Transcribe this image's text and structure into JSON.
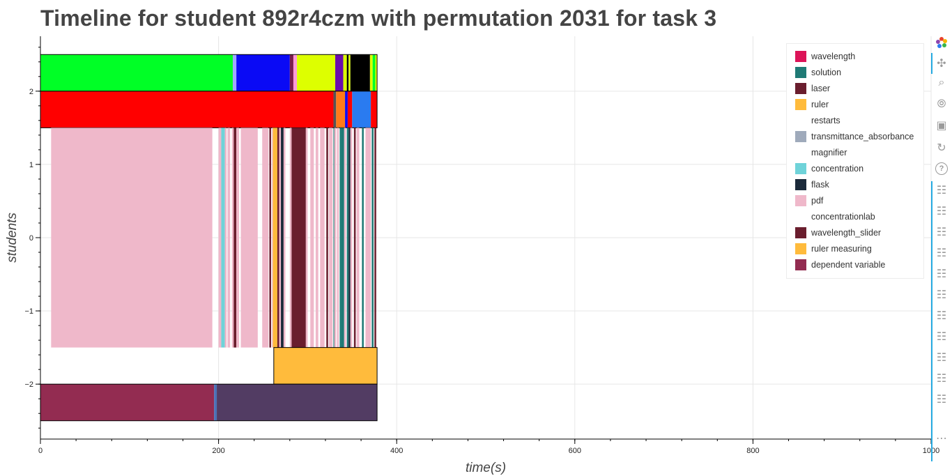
{
  "chart_data": {
    "type": "timeline",
    "title": "Timeline for student 892r4czm with permutation 2031 for task 3",
    "xlabel": "time(s)",
    "ylabel": "students",
    "xlim": [
      0,
      1000
    ],
    "ylim": [
      -2.75,
      2.75
    ],
    "x_ticks": [
      0,
      200,
      400,
      600,
      800,
      1000
    ],
    "x_tick_labels": [
      "0",
      "200",
      "400",
      "600",
      "800",
      "1000"
    ],
    "y_ticks": [
      2,
      1,
      0,
      -1,
      -2
    ],
    "y_tick_labels": [
      "2",
      "1",
      "0",
      "−1",
      "−2"
    ],
    "grid": true,
    "legend_position": "top-right",
    "bands": [
      {
        "y0": 2.0,
        "y1": 2.5,
        "outline": true,
        "segments": [
          {
            "x0": 0,
            "x1": 216,
            "color": "#00ff26"
          },
          {
            "x0": 216,
            "x1": 220,
            "color": "#a0a8ff"
          },
          {
            "x0": 220,
            "x1": 280,
            "color": "#0a0af5"
          },
          {
            "x0": 280,
            "x1": 284,
            "color": "#7a1d4d"
          },
          {
            "x0": 284,
            "x1": 288,
            "color": "#ff9ad8"
          },
          {
            "x0": 288,
            "x1": 331,
            "color": "#ddff00"
          },
          {
            "x0": 331,
            "x1": 340,
            "color": "#6a0dad"
          },
          {
            "x0": 340,
            "x1": 344,
            "color": "#ddff00"
          },
          {
            "x0": 344,
            "x1": 346,
            "color": "#000000"
          },
          {
            "x0": 346,
            "x1": 348,
            "color": "#ddff00"
          },
          {
            "x0": 348,
            "x1": 370,
            "color": "#000000"
          },
          {
            "x0": 370,
            "x1": 373,
            "color": "#ddff00"
          },
          {
            "x0": 373,
            "x1": 376,
            "color": "#00ff26"
          },
          {
            "x0": 376,
            "x1": 378,
            "color": "#ddff00"
          }
        ]
      },
      {
        "y0": 1.5,
        "y1": 2.0,
        "outline": true,
        "segments": [
          {
            "x0": 0,
            "x1": 329,
            "color": "#ff0000"
          },
          {
            "x0": 329,
            "x1": 332,
            "color": "#555555"
          },
          {
            "x0": 332,
            "x1": 342,
            "color": "#ff7a1a"
          },
          {
            "x0": 342,
            "x1": 345,
            "color": "#0a0af5"
          },
          {
            "x0": 345,
            "x1": 350,
            "color": "#ff0000"
          },
          {
            "x0": 350,
            "x1": 371,
            "color": "#2a7bf0"
          },
          {
            "x0": 371,
            "x1": 378,
            "color": "#ff0000"
          }
        ]
      },
      {
        "y0": -1.5,
        "y1": 1.5,
        "outline": false,
        "segments": [
          {
            "x0": 12,
            "x1": 193,
            "color": "#efb8ca"
          },
          {
            "x0": 200,
            "x1": 203,
            "color": "#efb8ca"
          },
          {
            "x0": 203,
            "x1": 207,
            "color": "#6fd3d9"
          },
          {
            "x0": 207,
            "x1": 209,
            "color": "#efb8ca"
          },
          {
            "x0": 210,
            "x1": 213,
            "color": "#efb8ca"
          },
          {
            "x0": 215,
            "x1": 217,
            "color": "#efb8ca"
          },
          {
            "x0": 217,
            "x1": 220,
            "color": "#6a1e2e"
          },
          {
            "x0": 220,
            "x1": 223,
            "color": "#efb8ca"
          },
          {
            "x0": 225,
            "x1": 244,
            "color": "#efb8ca"
          },
          {
            "x0": 249,
            "x1": 256,
            "color": "#efb8ca"
          },
          {
            "x0": 257,
            "x1": 259,
            "color": "#6a1e2e"
          },
          {
            "x0": 260,
            "x1": 261,
            "color": "#efb8ca"
          },
          {
            "x0": 261,
            "x1": 266,
            "color": "#ffbb3c"
          },
          {
            "x0": 266,
            "x1": 268,
            "color": "#6a1e2e"
          },
          {
            "x0": 268,
            "x1": 270,
            "color": "#efb8ca"
          },
          {
            "x0": 270,
            "x1": 273,
            "color": "#1b2a3a"
          },
          {
            "x0": 273,
            "x1": 275,
            "color": "#efb8ca"
          },
          {
            "x0": 280,
            "x1": 282,
            "color": "#efb8ca"
          },
          {
            "x0": 282,
            "x1": 298,
            "color": "#6a1e2e"
          },
          {
            "x0": 298,
            "x1": 300,
            "color": "#efb8ca"
          },
          {
            "x0": 303,
            "x1": 307,
            "color": "#efb8ca"
          },
          {
            "x0": 309,
            "x1": 312,
            "color": "#efb8ca"
          },
          {
            "x0": 314,
            "x1": 319,
            "color": "#efb8ca"
          },
          {
            "x0": 321,
            "x1": 323,
            "color": "#6a1e2e"
          },
          {
            "x0": 324,
            "x1": 328,
            "color": "#efb8ca"
          },
          {
            "x0": 329,
            "x1": 330,
            "color": "#1f7a75"
          },
          {
            "x0": 330,
            "x1": 332,
            "color": "#efb8ca"
          },
          {
            "x0": 333,
            "x1": 335,
            "color": "#efb8ca"
          },
          {
            "x0": 336,
            "x1": 338,
            "color": "#1f7a75"
          },
          {
            "x0": 338,
            "x1": 341,
            "color": "#1f7a75"
          },
          {
            "x0": 341,
            "x1": 343,
            "color": "#efb8ca"
          },
          {
            "x0": 344,
            "x1": 346,
            "color": "#1f7a75"
          },
          {
            "x0": 346,
            "x1": 348,
            "color": "#1b2a3a"
          },
          {
            "x0": 348,
            "x1": 350,
            "color": "#efb8ca"
          },
          {
            "x0": 352,
            "x1": 354,
            "color": "#6a1e2e"
          },
          {
            "x0": 355,
            "x1": 358,
            "color": "#efb8ca"
          },
          {
            "x0": 361,
            "x1": 363,
            "color": "#1f7a75"
          },
          {
            "x0": 365,
            "x1": 371,
            "color": "#efb8ca"
          },
          {
            "x0": 372,
            "x1": 374,
            "color": "#1f7a75"
          },
          {
            "x0": 375,
            "x1": 377,
            "color": "#6a1e2e"
          }
        ]
      },
      {
        "y0": -2.0,
        "y1": -1.5,
        "outline": true,
        "segments": [
          {
            "x0": 262,
            "x1": 378,
            "color": "#ffbb3c"
          }
        ]
      },
      {
        "y0": -2.5,
        "y1": -2.0,
        "outline": true,
        "segments": [
          {
            "x0": 0,
            "x1": 195,
            "color": "#932c51"
          },
          {
            "x0": 195,
            "x1": 198,
            "color": "#4a73b8"
          },
          {
            "x0": 198,
            "x1": 378,
            "color": "#523c63"
          }
        ]
      }
    ]
  },
  "legend": {
    "items": [
      {
        "label": "wavelength",
        "color": "#dc1458"
      },
      {
        "label": "solution",
        "color": "#1f7a75"
      },
      {
        "label": "laser",
        "color": "#6a1e2e"
      },
      {
        "label": "ruler",
        "color": "#ffbb3c"
      },
      {
        "label": "restarts",
        "color": ""
      },
      {
        "label": "transmittance_absorbance",
        "color": "#9faabb"
      },
      {
        "label": "magnifier",
        "color": ""
      },
      {
        "label": "concentration",
        "color": "#6fd3d9"
      },
      {
        "label": "flask",
        "color": "#1b2a3a"
      },
      {
        "label": "pdf",
        "color": "#efb8ca"
      },
      {
        "label": "concentrationlab",
        "color": ""
      },
      {
        "label": "wavelength_slider",
        "color": "#6a1e2e"
      },
      {
        "label": "ruler measuring",
        "color": "#ffbb3c"
      },
      {
        "label": "dependent variable",
        "color": "#932c51"
      }
    ]
  },
  "toolbar": {
    "tools": [
      {
        "name": "bokeh-logo-icon"
      },
      {
        "name": "pan-tool-icon"
      },
      {
        "name": "box-zoom-tool-icon"
      },
      {
        "name": "wheel-zoom-tool-icon"
      },
      {
        "name": "save-tool-icon"
      },
      {
        "name": "reset-tool-icon"
      },
      {
        "name": "help-tool-icon"
      },
      {
        "name": "hover-tool-icon"
      },
      {
        "name": "hover-tool-icon"
      },
      {
        "name": "hover-tool-icon"
      },
      {
        "name": "hover-tool-icon"
      },
      {
        "name": "hover-tool-icon"
      },
      {
        "name": "hover-tool-icon"
      },
      {
        "name": "hover-tool-icon"
      },
      {
        "name": "hover-tool-icon"
      },
      {
        "name": "hover-tool-icon"
      },
      {
        "name": "hover-tool-icon"
      },
      {
        "name": "hover-tool-icon"
      },
      {
        "name": "more-tools-icon"
      }
    ]
  }
}
